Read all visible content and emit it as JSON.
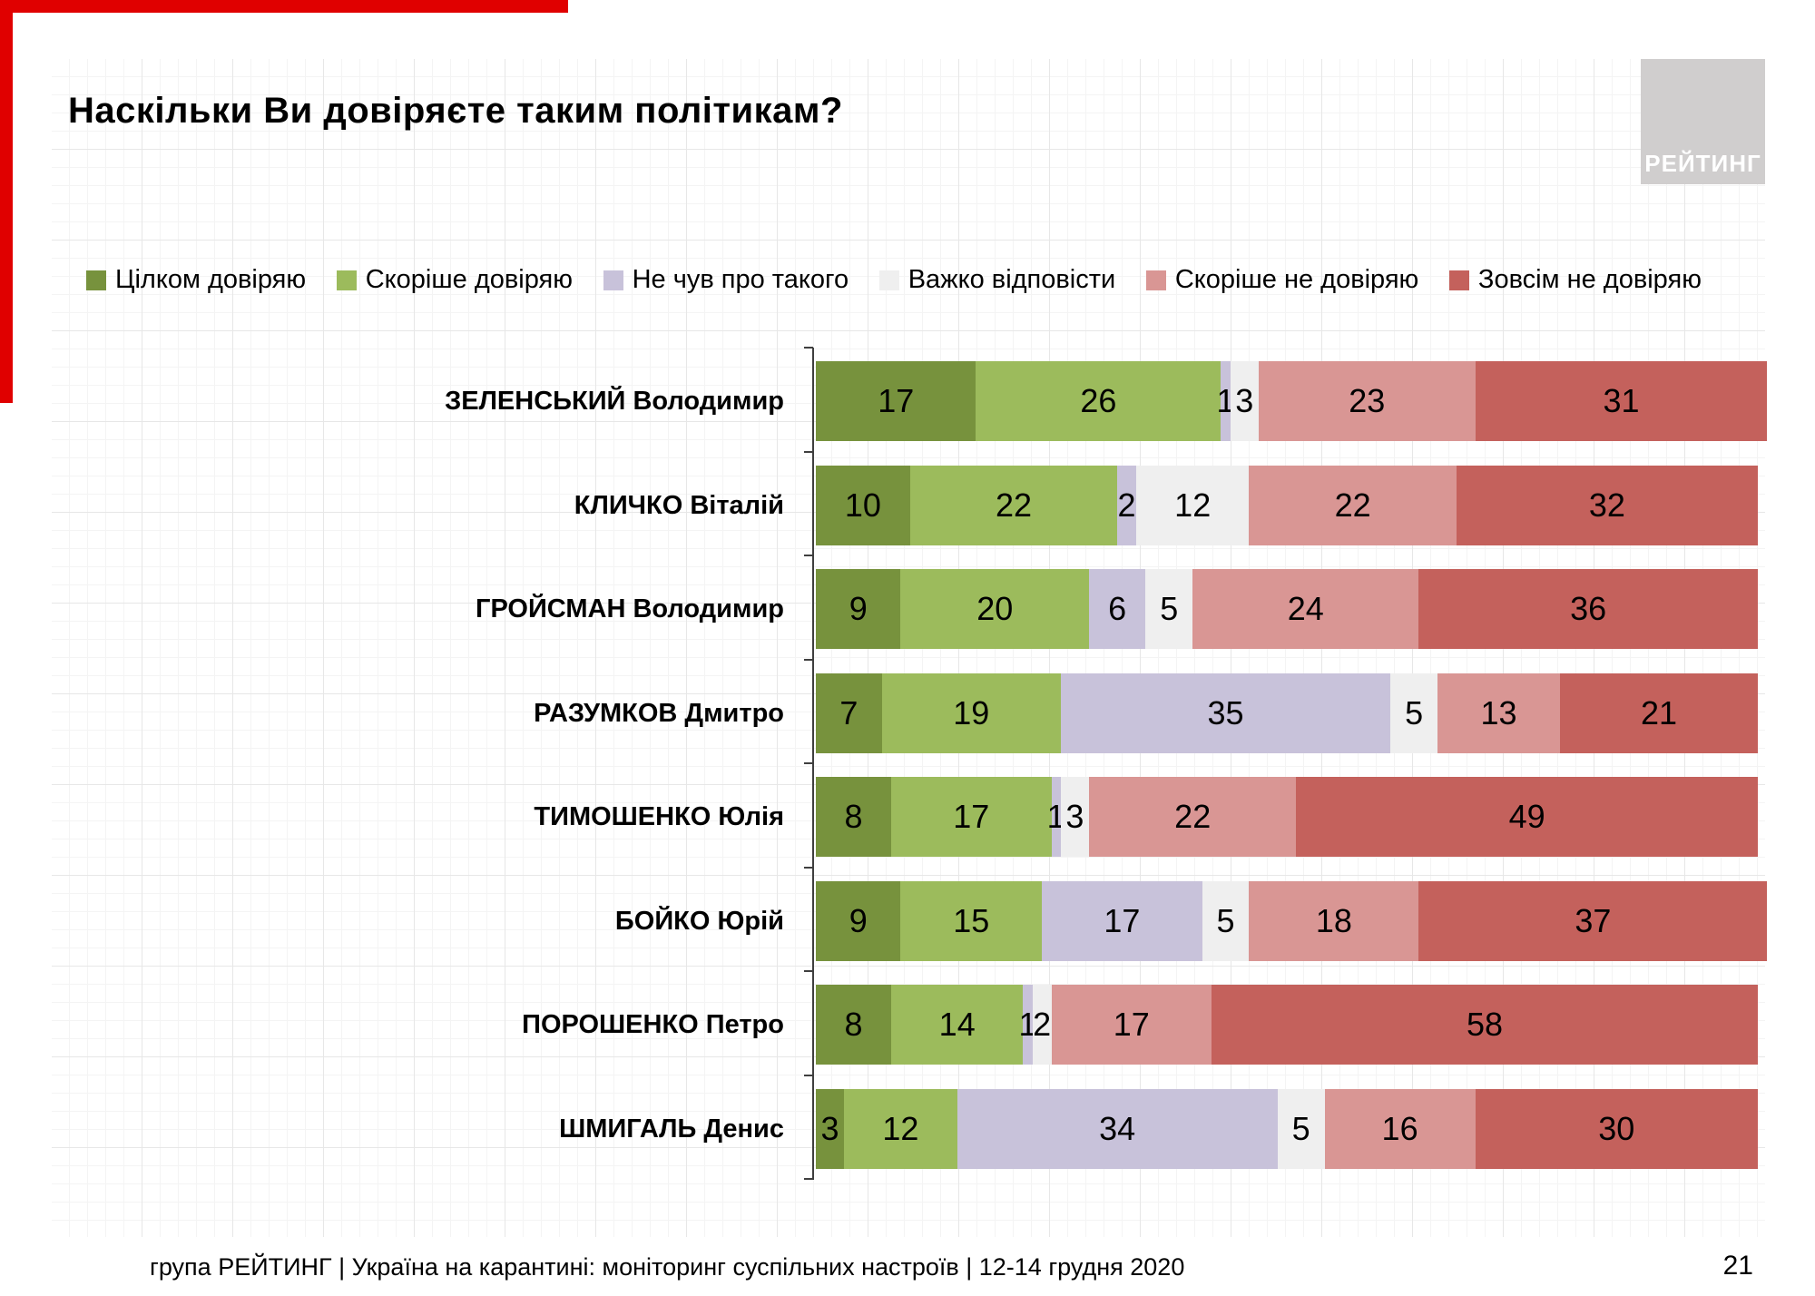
{
  "slide": {
    "title": "Наскільки Ви довіряєте таким політикам?",
    "footer": "група РЕЙТИНГ | Україна на карантині: моніторинг суспільних настроїв | 12-14 грудня 2020",
    "page_number": "21",
    "logo_text": "РЕЙТИНГ"
  },
  "colors": {
    "fully_trust": "#77923D",
    "rather_trust": "#9CBB5C",
    "not_heard": "#C8C2DA",
    "hard_to_say": "#EFEFEF",
    "rather_distrust": "#D99694",
    "fully_distrust": "#C4615C",
    "accent_red": "#E00000",
    "axis": "#3F3F3F",
    "logo_bg": "#D0CECE"
  },
  "legend": {
    "items": [
      {
        "label": "Цілком довіряю",
        "color_key": "fully_trust"
      },
      {
        "label": "Скоріше довіряю",
        "color_key": "rather_trust"
      },
      {
        "label": "Не чув про такого",
        "color_key": "not_heard"
      },
      {
        "label": "Важко відповісти",
        "color_key": "hard_to_say"
      },
      {
        "label": "Скоріше не довіряю",
        "color_key": "rather_distrust"
      },
      {
        "label": "Зовсім не довіряю",
        "color_key": "fully_distrust"
      }
    ]
  },
  "chart_data": {
    "type": "bar",
    "orientation": "horizontal",
    "stacked": true,
    "unit": "percent",
    "title": "Наскільки Ви довіряєте таким політикам?",
    "legend_position": "top",
    "value_labels": true,
    "xlim": [
      0,
      100
    ],
    "categories": [
      "ЗЕЛЕНСЬКИЙ Володимир",
      "КЛИЧКО Віталій",
      "ГРОЙСМАН Володимир",
      "РАЗУМКОВ Дмитро",
      "ТИМОШЕНКО Юлія",
      "БОЙКО Юрій",
      "ПОРОШЕНКО Петро",
      "ШМИГАЛЬ Денис"
    ],
    "series": [
      {
        "name": "Цілком довіряю",
        "color_key": "fully_trust",
        "values": [
          17,
          10,
          9,
          7,
          8,
          9,
          8,
          3
        ]
      },
      {
        "name": "Скоріше довіряю",
        "color_key": "rather_trust",
        "values": [
          26,
          22,
          20,
          19,
          17,
          15,
          14,
          12
        ]
      },
      {
        "name": "Не чув про такого",
        "color_key": "not_heard",
        "values": [
          1,
          2,
          6,
          35,
          1,
          17,
          1,
          34
        ]
      },
      {
        "name": "Важко відповісти",
        "color_key": "hard_to_say",
        "values": [
          3,
          12,
          5,
          5,
          3,
          5,
          2,
          5
        ]
      },
      {
        "name": "Скоріше не довіряю",
        "color_key": "rather_distrust",
        "values": [
          23,
          22,
          24,
          13,
          22,
          18,
          17,
          16
        ]
      },
      {
        "name": "Зовсім не довіряю",
        "color_key": "fully_distrust",
        "values": [
          31,
          32,
          36,
          21,
          49,
          37,
          58,
          30
        ]
      }
    ]
  }
}
